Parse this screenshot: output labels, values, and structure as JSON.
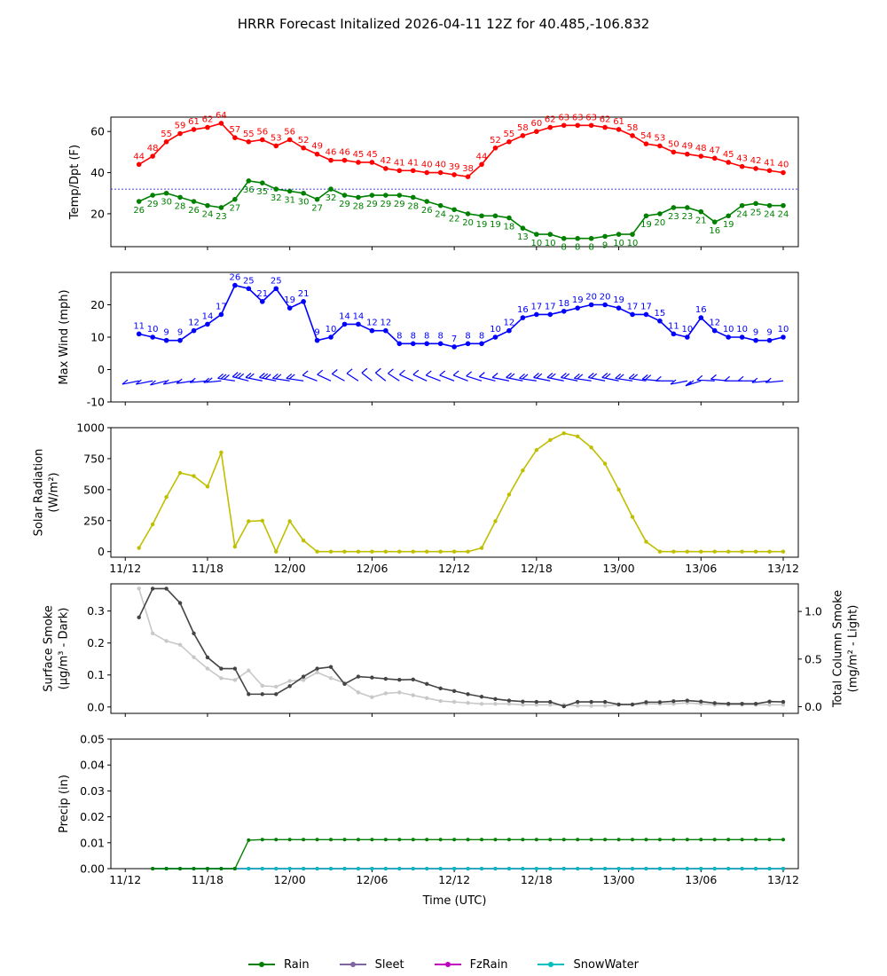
{
  "title": "HRRR Forecast Initalized 2026-04-11 12Z for 40.485,-106.832",
  "colors": {
    "temp": "#ff0000",
    "dewpoint": "#008000",
    "wind": "#0000ff",
    "solar": "#bfbf00",
    "smoke_surface": "#c8c8c8",
    "smoke_column": "#444444",
    "rain": "#008000",
    "sleet": "#8064a2",
    "fzrain": "#bf00bf",
    "snowwater": "#00bfbf",
    "freezing_line": "#0000ff"
  },
  "x_axis": {
    "hours_start": 0,
    "hours_end": 48,
    "ticks": [
      {
        "h": 0,
        "label": "11/12"
      },
      {
        "h": 6,
        "label": "11/18"
      },
      {
        "h": 12,
        "label": "12/00"
      },
      {
        "h": 18,
        "label": "12/06"
      },
      {
        "h": 24,
        "label": "12/12"
      },
      {
        "h": 30,
        "label": "12/18"
      },
      {
        "h": 36,
        "label": "13/00"
      },
      {
        "h": 42,
        "label": "13/06"
      },
      {
        "h": 48,
        "label": "13/12"
      }
    ],
    "xlabel": "Time (UTC)"
  },
  "chart_data": [
    {
      "type": "line",
      "panel": "temperature",
      "ylabel": "Temp/Dpt (F)",
      "ylim": [
        4,
        67
      ],
      "yticks": [
        20,
        40,
        60
      ],
      "freezing_line": 32,
      "x": [
        1,
        2,
        3,
        4,
        5,
        6,
        7,
        8,
        9,
        10,
        11,
        12,
        13,
        14,
        15,
        16,
        17,
        18,
        19,
        20,
        21,
        22,
        23,
        24,
        25,
        26,
        27,
        28,
        29,
        30,
        31,
        32,
        33,
        34,
        35,
        36,
        37,
        38,
        39,
        40,
        41,
        42,
        43,
        44,
        45,
        46,
        47,
        48
      ],
      "series": [
        {
          "name": "Temperature",
          "values": [
            44,
            48,
            55,
            59,
            61,
            62,
            64,
            57,
            55,
            56,
            53,
            56,
            52,
            49,
            46,
            46,
            45,
            45,
            42,
            41,
            41,
            40,
            40,
            39,
            38,
            44,
            52,
            55,
            58,
            60,
            62,
            63,
            63,
            63,
            62,
            61,
            58,
            54,
            53,
            50,
            49,
            48,
            47,
            45,
            43,
            42,
            41,
            40
          ]
        },
        {
          "name": "Dewpoint",
          "values": [
            26,
            29,
            30,
            28,
            26,
            24,
            23,
            27,
            36,
            35,
            32,
            31,
            30,
            27,
            32,
            29,
            28,
            29,
            29,
            29,
            28,
            26,
            24,
            22,
            20,
            19,
            19,
            18,
            13,
            10,
            10,
            8,
            8,
            8,
            9,
            10,
            10,
            19,
            20,
            23,
            23,
            21,
            16,
            19,
            24,
            25,
            24,
            24
          ]
        }
      ]
    },
    {
      "type": "line",
      "panel": "wind",
      "ylabel": "Max Wind (mph)",
      "ylim": [
        -10,
        30
      ],
      "yticks": [
        -10,
        0,
        10,
        20
      ],
      "x": [
        1,
        2,
        3,
        4,
        5,
        6,
        7,
        8,
        9,
        10,
        11,
        12,
        13,
        14,
        15,
        16,
        17,
        18,
        19,
        20,
        21,
        22,
        23,
        24,
        25,
        26,
        27,
        28,
        29,
        30,
        31,
        32,
        33,
        34,
        35,
        36,
        37,
        38,
        39,
        40,
        41,
        42,
        43,
        44,
        45,
        46,
        47,
        48
      ],
      "series": [
        {
          "name": "Max Wind",
          "values": [
            11,
            10,
            9,
            9,
            12,
            14,
            17,
            26,
            25,
            21,
            25,
            19,
            21,
            9,
            10,
            14,
            14,
            12,
            12,
            8,
            8,
            8,
            8,
            7,
            8,
            8,
            10,
            12,
            16,
            17,
            17,
            18,
            19,
            20,
            20,
            19,
            17,
            17,
            15,
            11,
            10,
            16,
            12,
            10,
            10,
            9,
            9,
            10
          ]
        }
      ],
      "barb_directions_deg": [
        250,
        250,
        245,
        250,
        255,
        260,
        260,
        285,
        295,
        290,
        290,
        285,
        285,
        305,
        310,
        315,
        320,
        325,
        325,
        320,
        310,
        310,
        305,
        305,
        305,
        300,
        295,
        290,
        290,
        285,
        290,
        290,
        290,
        285,
        290,
        290,
        285,
        285,
        280,
        270,
        250,
        240,
        275,
        280,
        270,
        270,
        260,
        260
      ]
    },
    {
      "type": "line",
      "panel": "solar",
      "ylabel": "Solar Radiation",
      "ylabel_units": "(W/m²)",
      "ylim": [
        -45,
        1000
      ],
      "yticks": [
        0,
        250,
        500,
        750,
        1000
      ],
      "x": [
        1,
        2,
        3,
        4,
        5,
        6,
        7,
        8,
        9,
        10,
        11,
        12,
        13,
        14,
        15,
        16,
        17,
        18,
        19,
        20,
        21,
        22,
        23,
        24,
        25,
        26,
        27,
        28,
        29,
        30,
        31,
        32,
        33,
        34,
        35,
        36,
        37,
        38,
        39,
        40,
        41,
        42,
        43,
        44,
        45,
        46,
        47,
        48
      ],
      "series": [
        {
          "name": "Solar Radiation",
          "values": [
            30,
            220,
            440,
            635,
            610,
            525,
            800,
            40,
            245,
            250,
            0,
            245,
            90,
            0,
            0,
            0,
            0,
            0,
            0,
            0,
            0,
            0,
            0,
            0,
            0,
            30,
            245,
            460,
            655,
            820,
            900,
            955,
            930,
            840,
            710,
            500,
            280,
            80,
            0,
            0,
            0,
            0,
            0,
            0,
            0,
            0,
            0,
            0
          ]
        }
      ]
    },
    {
      "type": "line",
      "panel": "smoke",
      "ylabel_left": "Surface Smoke",
      "ylabel_left_units": "(μg/m³ - Dark)",
      "ylabel_right": "Total Column Smoke",
      "ylabel_right_units": "(mg/m² - Light)",
      "ylim_left": [
        -0.02,
        0.385
      ],
      "yticks_left": [
        0.0,
        0.1,
        0.2,
        0.3
      ],
      "ylim_right": [
        -0.07,
        1.29
      ],
      "yticks_right": [
        0.0,
        0.5,
        1.0
      ],
      "x": [
        1,
        2,
        3,
        4,
        5,
        6,
        7,
        8,
        9,
        10,
        11,
        12,
        13,
        14,
        15,
        16,
        17,
        18,
        19,
        20,
        21,
        22,
        23,
        24,
        25,
        26,
        27,
        28,
        29,
        30,
        31,
        32,
        33,
        34,
        35,
        36,
        37,
        38,
        39,
        40,
        41,
        42,
        43,
        44,
        45,
        46,
        47,
        48
      ],
      "series": [
        {
          "name": "Surface Smoke",
          "axis": "left",
          "values": [
            0.28,
            0.37,
            0.37,
            0.325,
            0.23,
            0.155,
            0.12,
            0.12,
            0.04,
            0.04,
            0.04,
            0.065,
            0.095,
            0.12,
            0.125,
            0.072,
            0.095,
            0.092,
            0.088,
            0.085,
            0.086,
            0.072,
            0.058,
            0.05,
            0.04,
            0.032,
            0.025,
            0.02,
            0.017,
            0.016,
            0.016,
            0.002,
            0.016,
            0.016,
            0.016,
            0.008,
            0.008,
            0.015,
            0.015,
            0.018,
            0.02,
            0.017,
            0.012,
            0.01,
            0.01,
            0.01,
            0.017,
            0.016
          ]
        },
        {
          "name": "Total Column Smoke",
          "axis": "right",
          "values": [
            1.24,
            0.77,
            0.69,
            0.65,
            0.52,
            0.4,
            0.3,
            0.28,
            0.38,
            0.22,
            0.21,
            0.27,
            0.28,
            0.36,
            0.3,
            0.25,
            0.15,
            0.1,
            0.14,
            0.15,
            0.12,
            0.09,
            0.06,
            0.05,
            0.04,
            0.03,
            0.03,
            0.03,
            0.02,
            0.02,
            0.02,
            0.02,
            0.01,
            0.01,
            0.01,
            0.02,
            0.02,
            0.03,
            0.03,
            0.03,
            0.04,
            0.03,
            0.02,
            0.02,
            0.02,
            0.02,
            0.02,
            0.02
          ]
        }
      ]
    },
    {
      "type": "line",
      "panel": "precip",
      "ylabel": "Precip (in)",
      "ylim": [
        0,
        0.05
      ],
      "yticks": [
        0.0,
        0.01,
        0.02,
        0.03,
        0.04,
        0.05
      ],
      "yticklabels": [
        "0.00",
        "0.01",
        "0.02",
        "0.03",
        "0.04",
        "0.05"
      ],
      "x": [
        2,
        3,
        4,
        5,
        6,
        7,
        8,
        9,
        10,
        11,
        12,
        13,
        14,
        15,
        16,
        17,
        18,
        19,
        20,
        21,
        22,
        23,
        24,
        25,
        26,
        27,
        28,
        29,
        30,
        31,
        32,
        33,
        34,
        35,
        36,
        37,
        38,
        39,
        40,
        41,
        42,
        43,
        44,
        45,
        46,
        47,
        48
      ],
      "series": [
        {
          "name": "Rain",
          "values": [
            0,
            0,
            0,
            0,
            0,
            0,
            0,
            0.011,
            0.0112,
            0.0112,
            0.0112,
            0.0112,
            0.0112,
            0.0112,
            0.0112,
            0.0112,
            0.0112,
            0.0112,
            0.0112,
            0.0112,
            0.0112,
            0.0112,
            0.0112,
            0.0112,
            0.0112,
            0.0112,
            0.0112,
            0.0112,
            0.0112,
            0.0112,
            0.0112,
            0.0112,
            0.0112,
            0.0112,
            0.0112,
            0.0112,
            0.0112,
            0.0112,
            0.0112,
            0.0112,
            0.0112,
            0.0112,
            0.0112,
            0.0112,
            0.0112,
            0.0112,
            0.0112
          ]
        },
        {
          "name": "Sleet",
          "values": [
            0,
            0,
            0,
            0,
            0,
            0,
            0,
            0,
            0,
            0,
            0,
            0,
            0,
            0,
            0,
            0,
            0,
            0,
            0,
            0,
            0,
            0,
            0,
            0,
            0,
            0,
            0,
            0,
            0,
            0,
            0,
            0,
            0,
            0,
            0,
            0,
            0,
            0,
            0,
            0,
            0,
            0,
            0,
            0,
            0,
            0,
            0
          ]
        },
        {
          "name": "FzRain",
          "values": [
            0,
            0,
            0,
            0,
            0,
            0,
            0,
            0,
            0,
            0,
            0,
            0,
            0,
            0,
            0,
            0,
            0,
            0,
            0,
            0,
            0,
            0,
            0,
            0,
            0,
            0,
            0,
            0,
            0,
            0,
            0,
            0,
            0,
            0,
            0,
            0,
            0,
            0,
            0,
            0,
            0,
            0,
            0,
            0,
            0,
            0,
            0
          ]
        },
        {
          "name": "SnowWater",
          "values": [
            0,
            0,
            0,
            0,
            0,
            0,
            0,
            0,
            0,
            0,
            0,
            0,
            0,
            0,
            0,
            0,
            0,
            0,
            0,
            0,
            0,
            0,
            0,
            0,
            0,
            0,
            0,
            0,
            0,
            0,
            0,
            0,
            0,
            0,
            0,
            0,
            0,
            0,
            0,
            0,
            0,
            0,
            0,
            0,
            0,
            0,
            0
          ]
        }
      ]
    }
  ],
  "legend": [
    {
      "label": "Rain",
      "color": "#008000"
    },
    {
      "label": "Sleet",
      "color": "#8064a2"
    },
    {
      "label": "FzRain",
      "color": "#bf00bf"
    },
    {
      "label": "SnowWater",
      "color": "#00bfbf"
    }
  ]
}
